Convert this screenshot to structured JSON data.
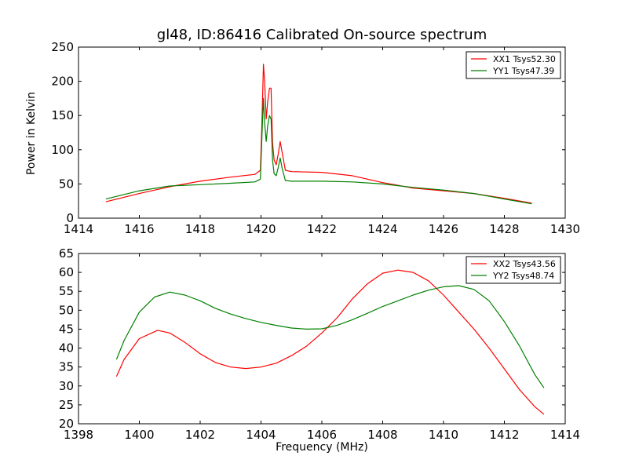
{
  "chart_data": [
    {
      "type": "line",
      "title": "gl48, ID:86416 Calibrated On-source spectrum",
      "xlabel": "",
      "ylabel": "Power in Kelvin",
      "xlim": [
        1414,
        1430
      ],
      "ylim": [
        0,
        250
      ],
      "xticks": [
        "1414",
        "1416",
        "1418",
        "1420",
        "1422",
        "1424",
        "1426",
        "1428",
        "1430"
      ],
      "yticks": [
        "0",
        "50",
        "100",
        "150",
        "200",
        "250"
      ],
      "grid": false,
      "legend_position": "top-right",
      "series": [
        {
          "name": "XX1 Tsys52.30",
          "color": "#ff0000",
          "x": [
            1414.9,
            1416,
            1417,
            1418,
            1419,
            1419.8,
            1419.98,
            1420.03,
            1420.08,
            1420.12,
            1420.17,
            1420.22,
            1420.28,
            1420.33,
            1420.38,
            1420.43,
            1420.5,
            1420.57,
            1420.63,
            1420.7,
            1420.8,
            1421,
            1422,
            1423,
            1424,
            1425,
            1426,
            1427,
            1428,
            1428.9
          ],
          "y": [
            24,
            36,
            46,
            54,
            60,
            64,
            70,
            140,
            225,
            200,
            145,
            170,
            190,
            190,
            110,
            85,
            78,
            95,
            112,
            95,
            70,
            68,
            67,
            62,
            52,
            44,
            40,
            36,
            29,
            22
          ]
        },
        {
          "name": "YY1 Tsys47.39",
          "color": "#008000",
          "x": [
            1414.9,
            1416,
            1417,
            1418,
            1419,
            1419.8,
            1419.98,
            1420.03,
            1420.08,
            1420.12,
            1420.17,
            1420.22,
            1420.28,
            1420.33,
            1420.38,
            1420.43,
            1420.5,
            1420.57,
            1420.63,
            1420.7,
            1420.8,
            1421,
            1422,
            1423,
            1424,
            1425,
            1426,
            1427,
            1428,
            1428.9
          ],
          "y": [
            28,
            40,
            47,
            49,
            51,
            53,
            57,
            120,
            175,
            140,
            112,
            135,
            150,
            145,
            85,
            65,
            62,
            75,
            88,
            72,
            55,
            54,
            54,
            53,
            50,
            45,
            41,
            36,
            28,
            21
          ]
        }
      ]
    },
    {
      "type": "line",
      "title": "",
      "xlabel": "Frequency (MHz)",
      "ylabel": "",
      "xlim": [
        1398,
        1414
      ],
      "ylim": [
        20,
        65
      ],
      "xticks": [
        "1398",
        "1400",
        "1402",
        "1404",
        "1406",
        "1408",
        "1410",
        "1412",
        "1414"
      ],
      "yticks": [
        "20",
        "25",
        "30",
        "35",
        "40",
        "45",
        "50",
        "55",
        "60",
        "65"
      ],
      "grid": false,
      "legend_position": "top-right",
      "series": [
        {
          "name": "XX2 Tsys43.56",
          "color": "#ff0000",
          "x": [
            1399.25,
            1399.5,
            1400,
            1400.6,
            1401,
            1401.5,
            1402,
            1402.5,
            1403,
            1403.5,
            1404,
            1404.5,
            1405,
            1405.5,
            1406,
            1406.5,
            1407,
            1407.5,
            1408,
            1408.5,
            1409,
            1409.5,
            1410,
            1410.5,
            1411,
            1411.5,
            1412,
            1412.5,
            1413,
            1413.3
          ],
          "y": [
            32.5,
            37,
            42.5,
            44.7,
            44,
            41.5,
            38.5,
            36.2,
            35,
            34.6,
            35,
            36,
            38,
            40.5,
            44,
            48,
            53,
            57,
            59.8,
            60.6,
            60,
            57.8,
            54,
            49.5,
            45,
            40,
            34.5,
            29,
            24.5,
            22.5
          ]
        },
        {
          "name": "YY2 Tsys48.74",
          "color": "#008000",
          "x": [
            1399.25,
            1399.5,
            1400,
            1400.5,
            1401,
            1401.5,
            1402,
            1402.5,
            1403,
            1403.5,
            1404,
            1404.5,
            1405,
            1405.5,
            1406,
            1406.5,
            1407,
            1407.5,
            1408,
            1408.5,
            1409,
            1409.5,
            1410,
            1410.5,
            1411,
            1411.5,
            1412,
            1412.5,
            1413,
            1413.3
          ],
          "y": [
            37,
            42,
            49.5,
            53.5,
            54.8,
            54,
            52.5,
            50.5,
            49,
            47.8,
            46.8,
            46,
            45.3,
            45,
            45.1,
            46,
            47.5,
            49.2,
            51,
            52.5,
            54,
            55.3,
            56.2,
            56.5,
            55.5,
            52.5,
            47,
            40.5,
            33,
            29.5
          ]
        }
      ]
    }
  ]
}
